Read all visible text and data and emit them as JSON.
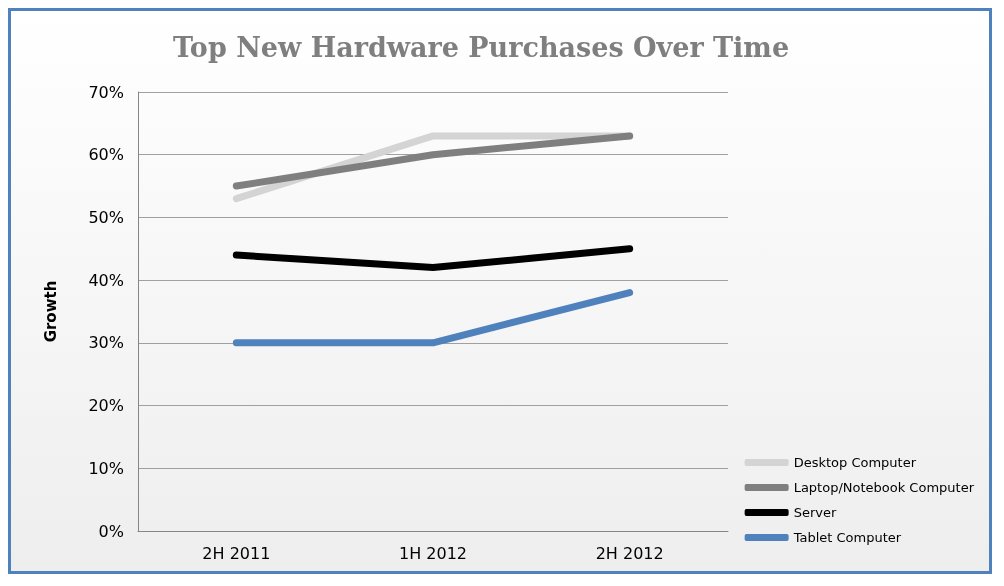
{
  "chart_data": {
    "type": "line",
    "title": "Top New Hardware Purchases Over Time",
    "ylabel": "Growth",
    "categories": [
      "2H 2011",
      "1H 2012",
      "2H 2012"
    ],
    "series": [
      {
        "name": "Desktop Computer",
        "color": "#d4d4d4",
        "values": [
          53,
          63,
          63
        ]
      },
      {
        "name": "Laptop/Notebook Computer",
        "color": "#7f7f7f",
        "values": [
          55,
          60,
          63
        ]
      },
      {
        "name": "Server",
        "color": "#000000",
        "values": [
          44,
          42,
          45
        ]
      },
      {
        "name": "Tablet Computer",
        "color": "#4f81bd",
        "values": [
          30,
          30,
          38
        ]
      }
    ],
    "ylim": [
      0,
      70
    ],
    "yticks": [
      {
        "value": 0,
        "label": "0%"
      },
      {
        "value": 10,
        "label": "10%"
      },
      {
        "value": 20,
        "label": "20%"
      },
      {
        "value": 30,
        "label": "30%"
      },
      {
        "value": 40,
        "label": "40%"
      },
      {
        "value": 50,
        "label": "50%"
      },
      {
        "value": 60,
        "label": "60%"
      },
      {
        "value": 70,
        "label": "70%"
      }
    ],
    "grid": "y",
    "legend": "bottom right",
    "marker": "none",
    "line_style": "solid"
  }
}
